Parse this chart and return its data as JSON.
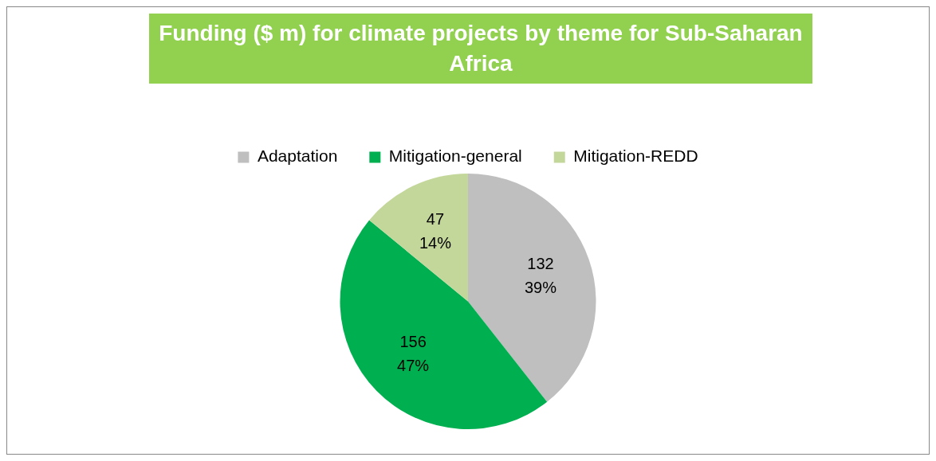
{
  "chart_data": {
    "type": "pie",
    "title": "Funding ($ m) for climate projects by theme for Sub-Saharan Africa",
    "categories": [
      "Adaptation",
      "Mitigation-general",
      "Mitigation-REDD"
    ],
    "values": [
      132,
      156,
      47
    ],
    "colors": [
      "#bfbfbf",
      "#00b050",
      "#c4d79b"
    ],
    "value_labels": [
      "132\n39%",
      "156\n47%",
      "47\n14%"
    ],
    "legend": "top"
  }
}
